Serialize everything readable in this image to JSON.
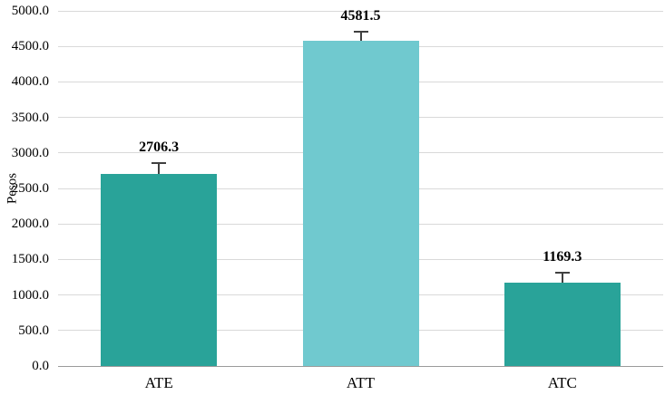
{
  "chart_data": {
    "type": "bar",
    "categories": [
      "ATE",
      "ATT",
      "ATC"
    ],
    "values": [
      2706.3,
      4581.5,
      1169.3
    ],
    "value_labels": [
      "2706.3",
      "4581.5",
      "1169.3"
    ],
    "errors": [
      150,
      130,
      140
    ],
    "title": "",
    "xlabel": "",
    "ylabel": "Pesos",
    "ylim": [
      0,
      5000
    ],
    "ytick_step": 500,
    "yticks": [
      "0.0",
      "500.0",
      "1000.0",
      "1500.0",
      "2000.0",
      "2500.0",
      "3000.0",
      "3500.0",
      "4000.0",
      "4500.0",
      "5000.0"
    ],
    "bar_colors": [
      "#29a399",
      "#70c9cf",
      "#29a399"
    ],
    "grid_color": "#d9d9d9",
    "axis_color": "#9b9b9b",
    "error_color": "#404040",
    "grid": "on",
    "legend": "none"
  }
}
